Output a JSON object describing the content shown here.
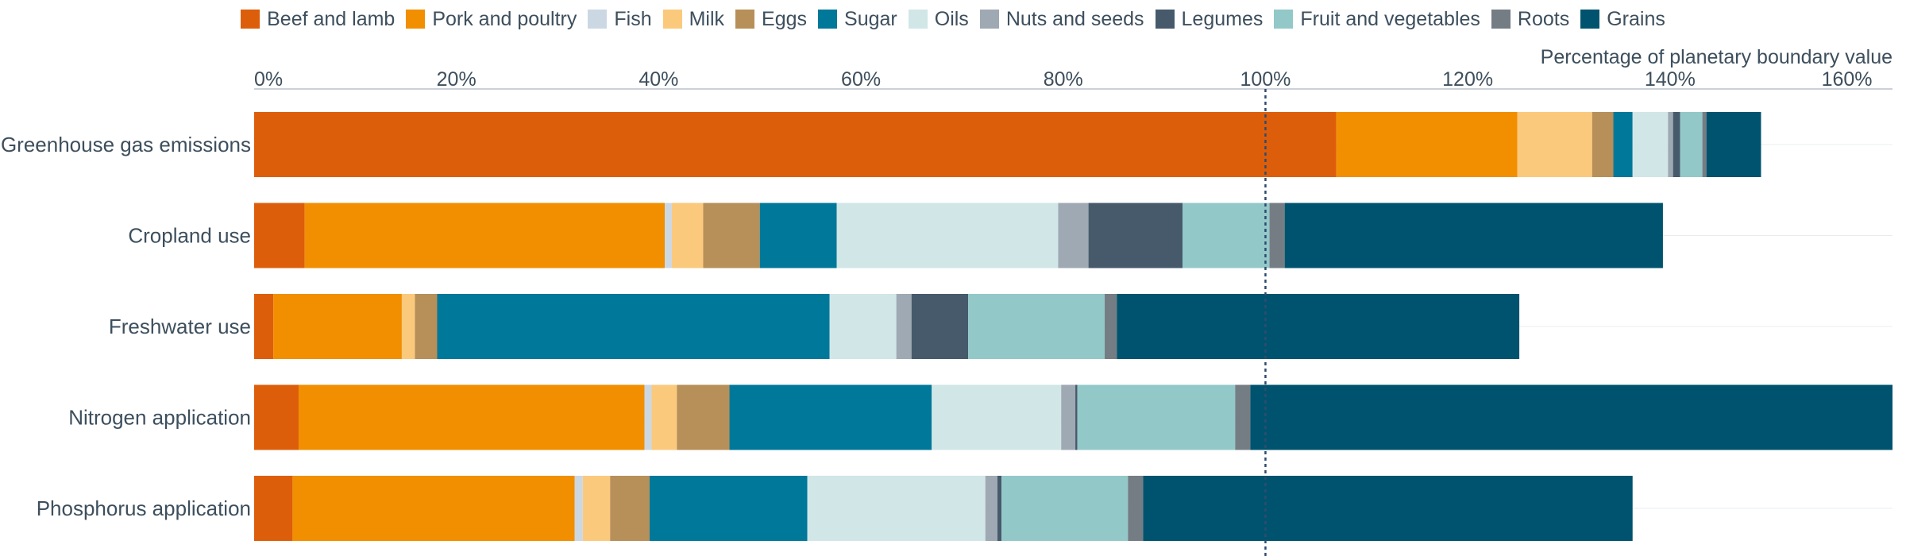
{
  "chart_data": {
    "type": "bar",
    "orientation": "horizontal",
    "stacked": true,
    "xlabel": "Percentage of planetary boundary value",
    "ylabel": "",
    "xlim": [
      0,
      162
    ],
    "x_ticks": [
      "0%",
      "20%",
      "40%",
      "60%",
      "80%",
      "100%",
      "120%",
      "140%",
      "160%"
    ],
    "x_tick_values": [
      0,
      20,
      40,
      60,
      80,
      100,
      120,
      140,
      160
    ],
    "reference_line": 100,
    "legend_placement": "top",
    "grid": "horizontal row lines only",
    "categories": [
      "Greenhouse gas emissions",
      "Cropland use",
      "Freshwater use",
      "Nitrogen application",
      "Phosphorus application"
    ],
    "series": [
      {
        "name": "Beef and lamb",
        "color": "#dd5e0a",
        "values": [
          107.0,
          5.0,
          1.9,
          4.4,
          3.8
        ]
      },
      {
        "name": "Pork and poultry",
        "color": "#f18f00",
        "values": [
          17.9,
          35.6,
          12.7,
          34.2,
          27.9
        ]
      },
      {
        "name": "Fish",
        "color": "#cbd8e4",
        "values": [
          0.0,
          0.7,
          0.0,
          0.7,
          0.8
        ]
      },
      {
        "name": "Milk",
        "color": "#fbc97c",
        "values": [
          7.4,
          3.1,
          1.3,
          2.5,
          2.7
        ]
      },
      {
        "name": "Eggs",
        "color": "#b78f58",
        "values": [
          2.1,
          5.6,
          2.2,
          5.2,
          3.9
        ]
      },
      {
        "name": "Sugar",
        "color": "#00789a",
        "values": [
          1.9,
          7.6,
          38.8,
          20.0,
          15.6
        ]
      },
      {
        "name": "Oils",
        "color": "#d1e6e6",
        "values": [
          3.5,
          21.9,
          6.6,
          12.8,
          17.6
        ]
      },
      {
        "name": "Nuts and seeds",
        "color": "#9fa9b3",
        "values": [
          0.5,
          3.0,
          1.5,
          1.4,
          1.2
        ]
      },
      {
        "name": "Legumes",
        "color": "#465a6c",
        "values": [
          0.7,
          9.3,
          5.6,
          0.2,
          0.4
        ]
      },
      {
        "name": "Fruit and vegetables",
        "color": "#93c8c8",
        "values": [
          2.2,
          8.6,
          13.5,
          15.6,
          12.5
        ]
      },
      {
        "name": "Roots",
        "color": "#757d84",
        "values": [
          0.4,
          1.5,
          1.2,
          1.5,
          1.5
        ]
      },
      {
        "name": "Grains",
        "color": "#00536e",
        "values": [
          5.4,
          37.4,
          39.8,
          64.2,
          48.4
        ]
      }
    ]
  }
}
